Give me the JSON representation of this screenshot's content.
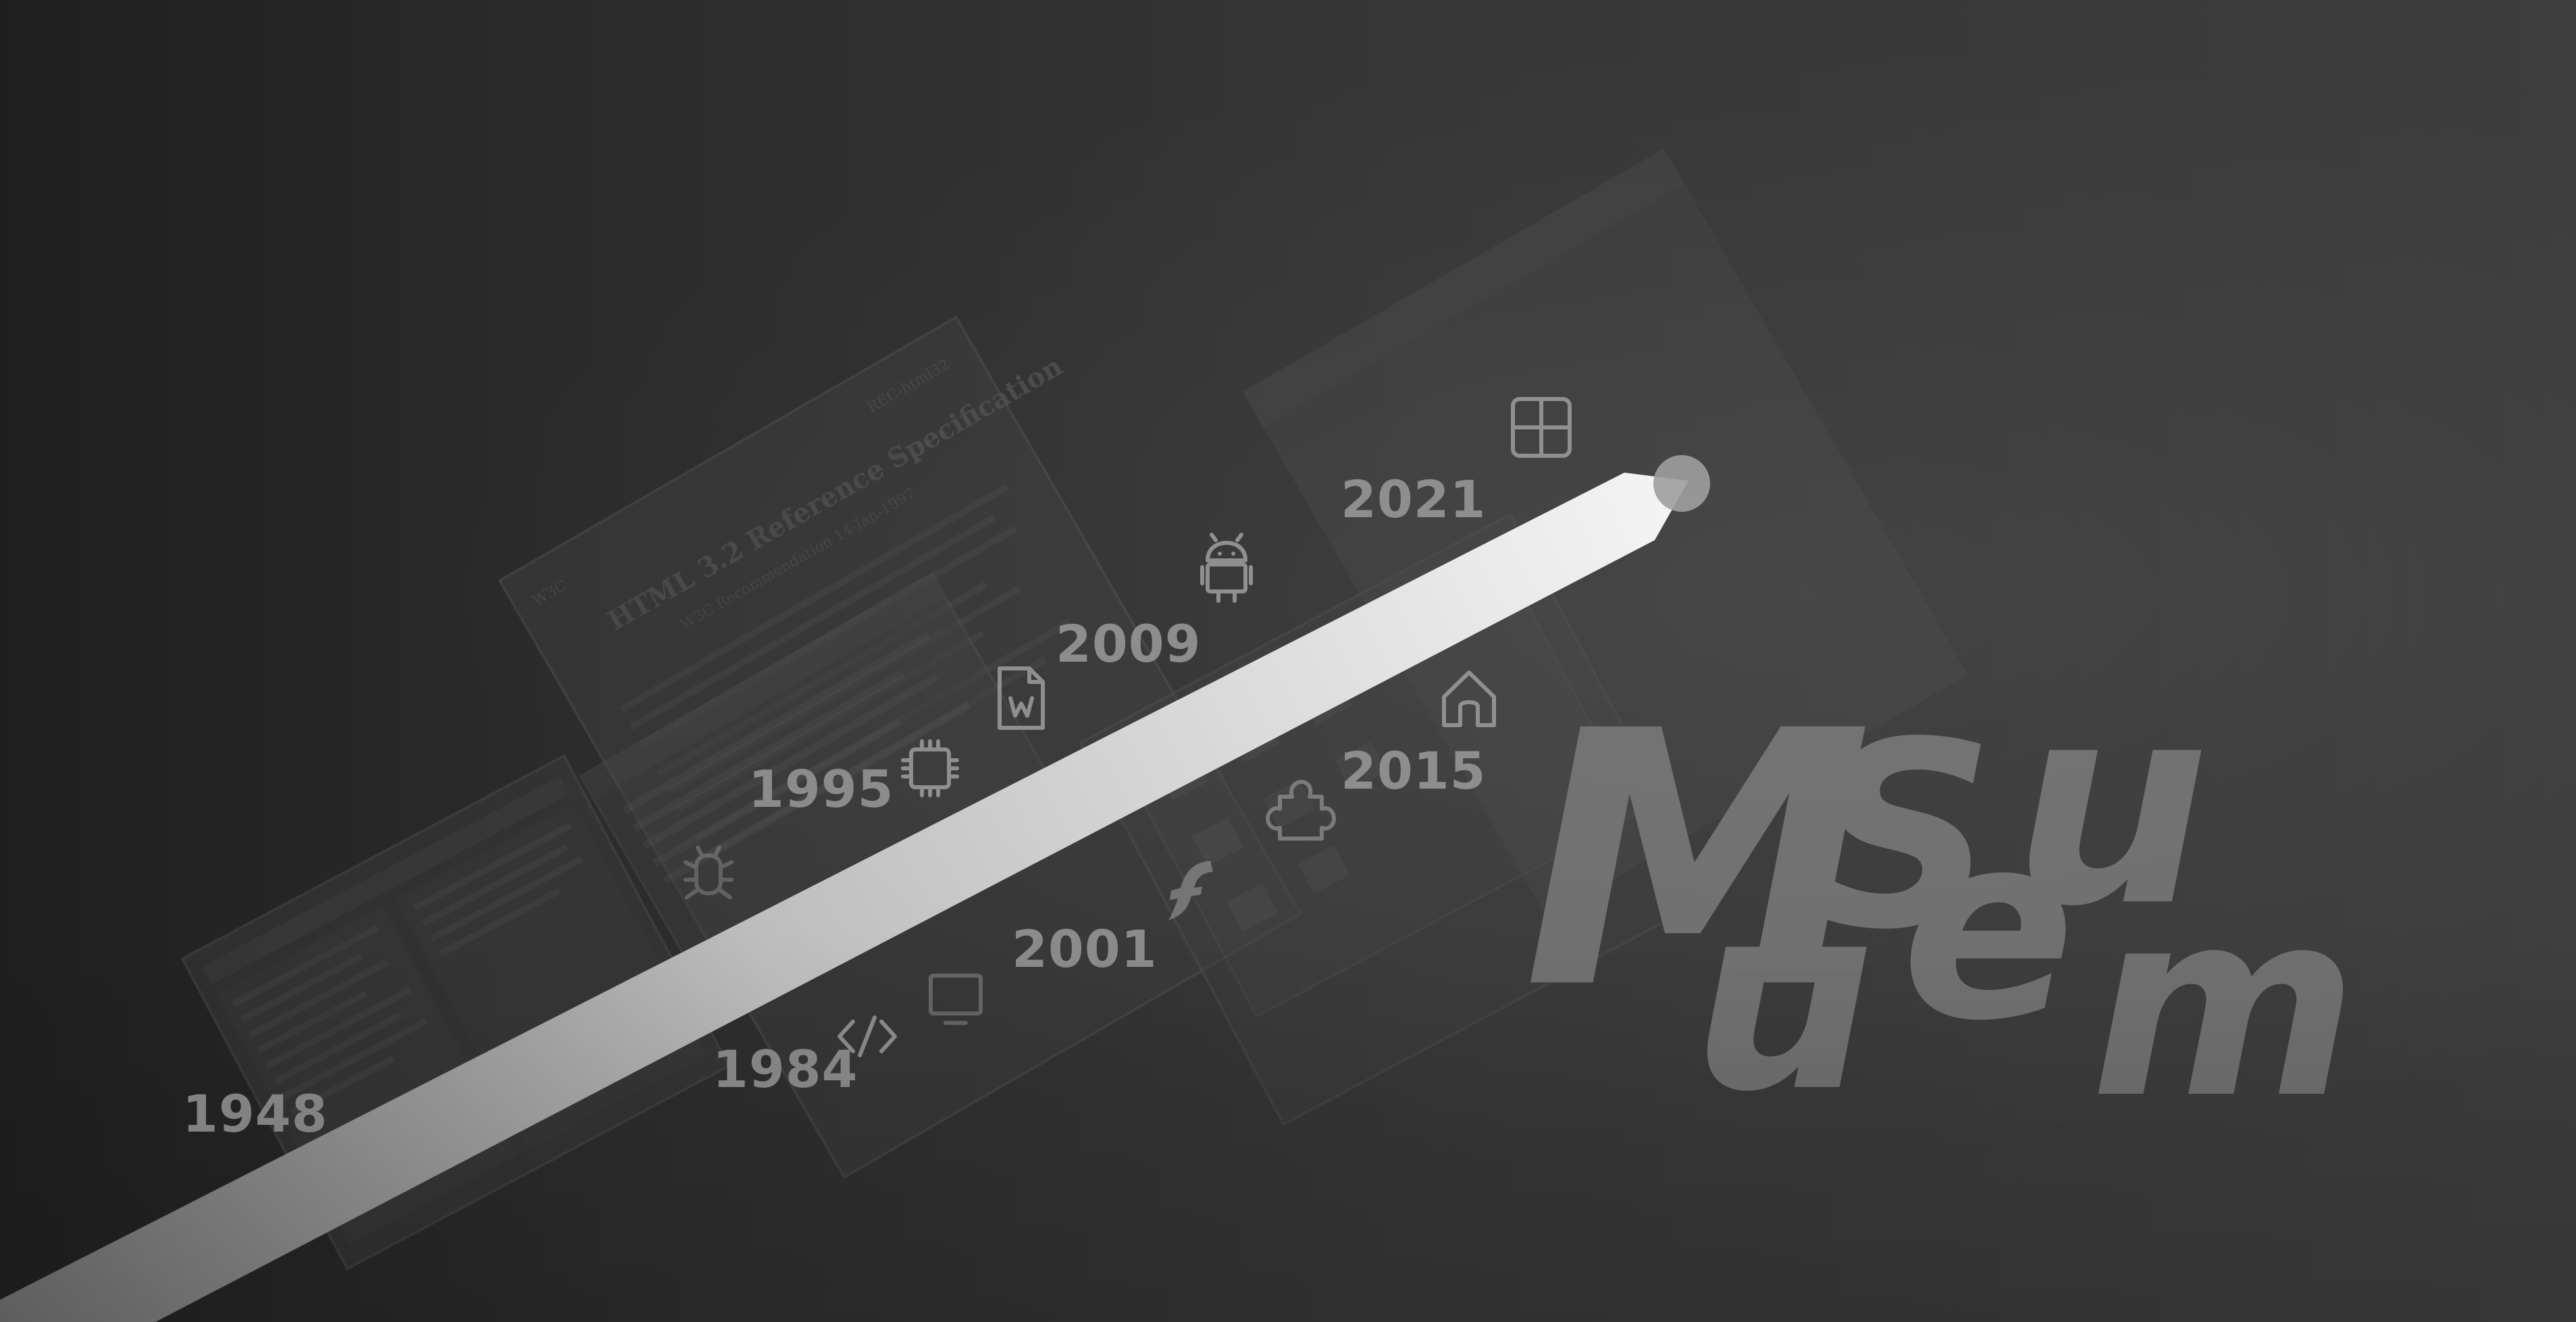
{
  "timeline": {
    "years": [
      "1948",
      "1984",
      "1995",
      "2001",
      "2009",
      "2015",
      "2021"
    ],
    "icons": [
      "code-icon",
      "monitor-icon",
      "bug-icon",
      "chip-icon",
      "word-document-icon",
      "flash-icon",
      "android-icon",
      "puzzle-icon",
      "home-icon",
      "windows-icon"
    ]
  },
  "museum_title": {
    "letters": [
      "M",
      "u",
      "S",
      "e",
      "u",
      "m"
    ]
  },
  "background_document": {
    "title": "HTML 3.2 Reference Specification",
    "subtitle": "W3C Recommendation 14-Jan-1997",
    "logo": "W3C",
    "tag": "REC-html32"
  },
  "colors": {
    "background_dark": "#1f1f1f",
    "background_light": "#3d3d3d",
    "arrow_light": "#f2f2f2",
    "arrow_dark": "#6a6a6a",
    "label": "#8a8a8a",
    "museum_text": "#6e6e6e"
  }
}
